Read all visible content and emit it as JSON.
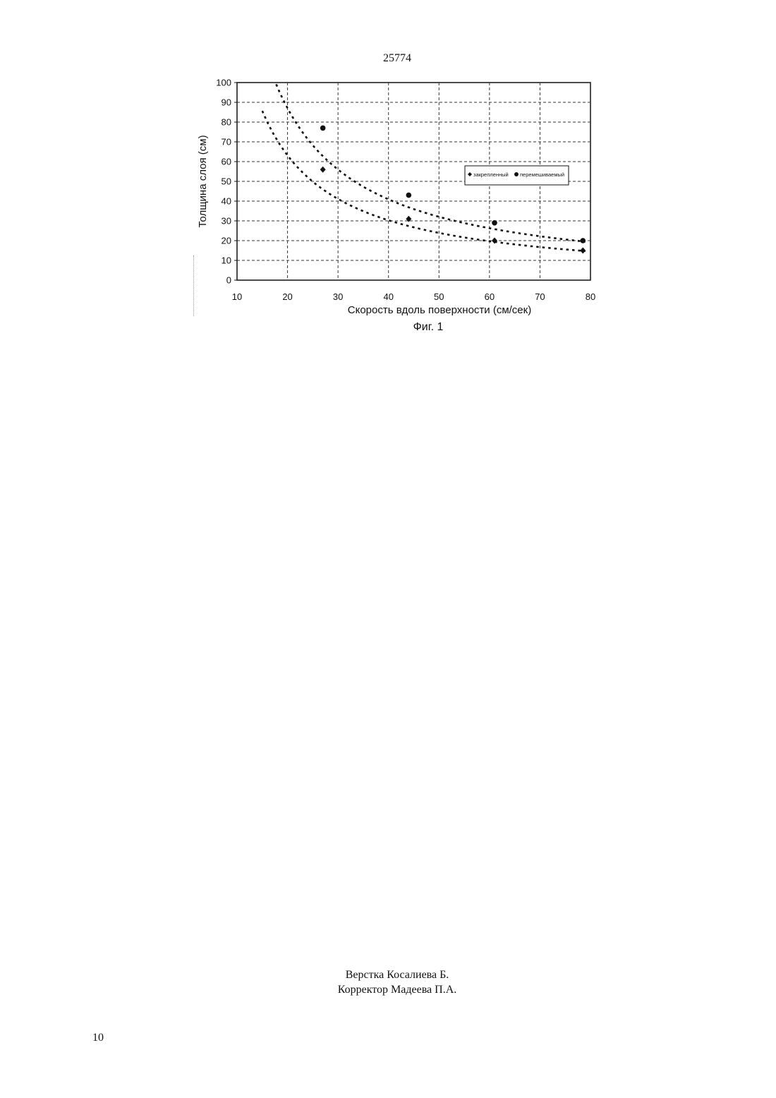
{
  "document": {
    "doc_number": "25774",
    "figure_caption": "Фиг. 1",
    "credits": [
      "Верстка Косалиева Б.",
      "Корректор Мадеева П.А."
    ],
    "page_number": "10"
  },
  "chart_data": {
    "type": "scatter",
    "xlabel": "Скорость вдоль поверхности (см/сек)",
    "ylabel": "Толщина слоя (см)",
    "xlim": [
      10,
      80
    ],
    "ylim": [
      0,
      100
    ],
    "x_ticks": [
      10,
      20,
      30,
      40,
      50,
      60,
      70,
      80
    ],
    "y_ticks": [
      0,
      10,
      20,
      30,
      40,
      50,
      60,
      70,
      80,
      90,
      100
    ],
    "grid": true,
    "legend_position": "right",
    "series": [
      {
        "name": "закрепленный",
        "marker": "diamond",
        "color": "#111111",
        "points": [
          {
            "x": 27,
            "y": 56
          },
          {
            "x": 44,
            "y": 31
          },
          {
            "x": 61,
            "y": 20
          },
          {
            "x": 78.5,
            "y": 15
          }
        ],
        "trendline": {
          "type": "power",
          "coefficient": 1512,
          "exponent": -1.06
        }
      },
      {
        "name": "перемешиваемый",
        "marker": "circle",
        "color": "#111111",
        "points": [
          {
            "x": 27,
            "y": 77
          },
          {
            "x": 44,
            "y": 43
          },
          {
            "x": 61,
            "y": 29
          },
          {
            "x": 78.5,
            "y": 20
          }
        ],
        "trendline": {
          "type": "power",
          "coefficient": 2280,
          "exponent": -1.09
        }
      }
    ]
  }
}
